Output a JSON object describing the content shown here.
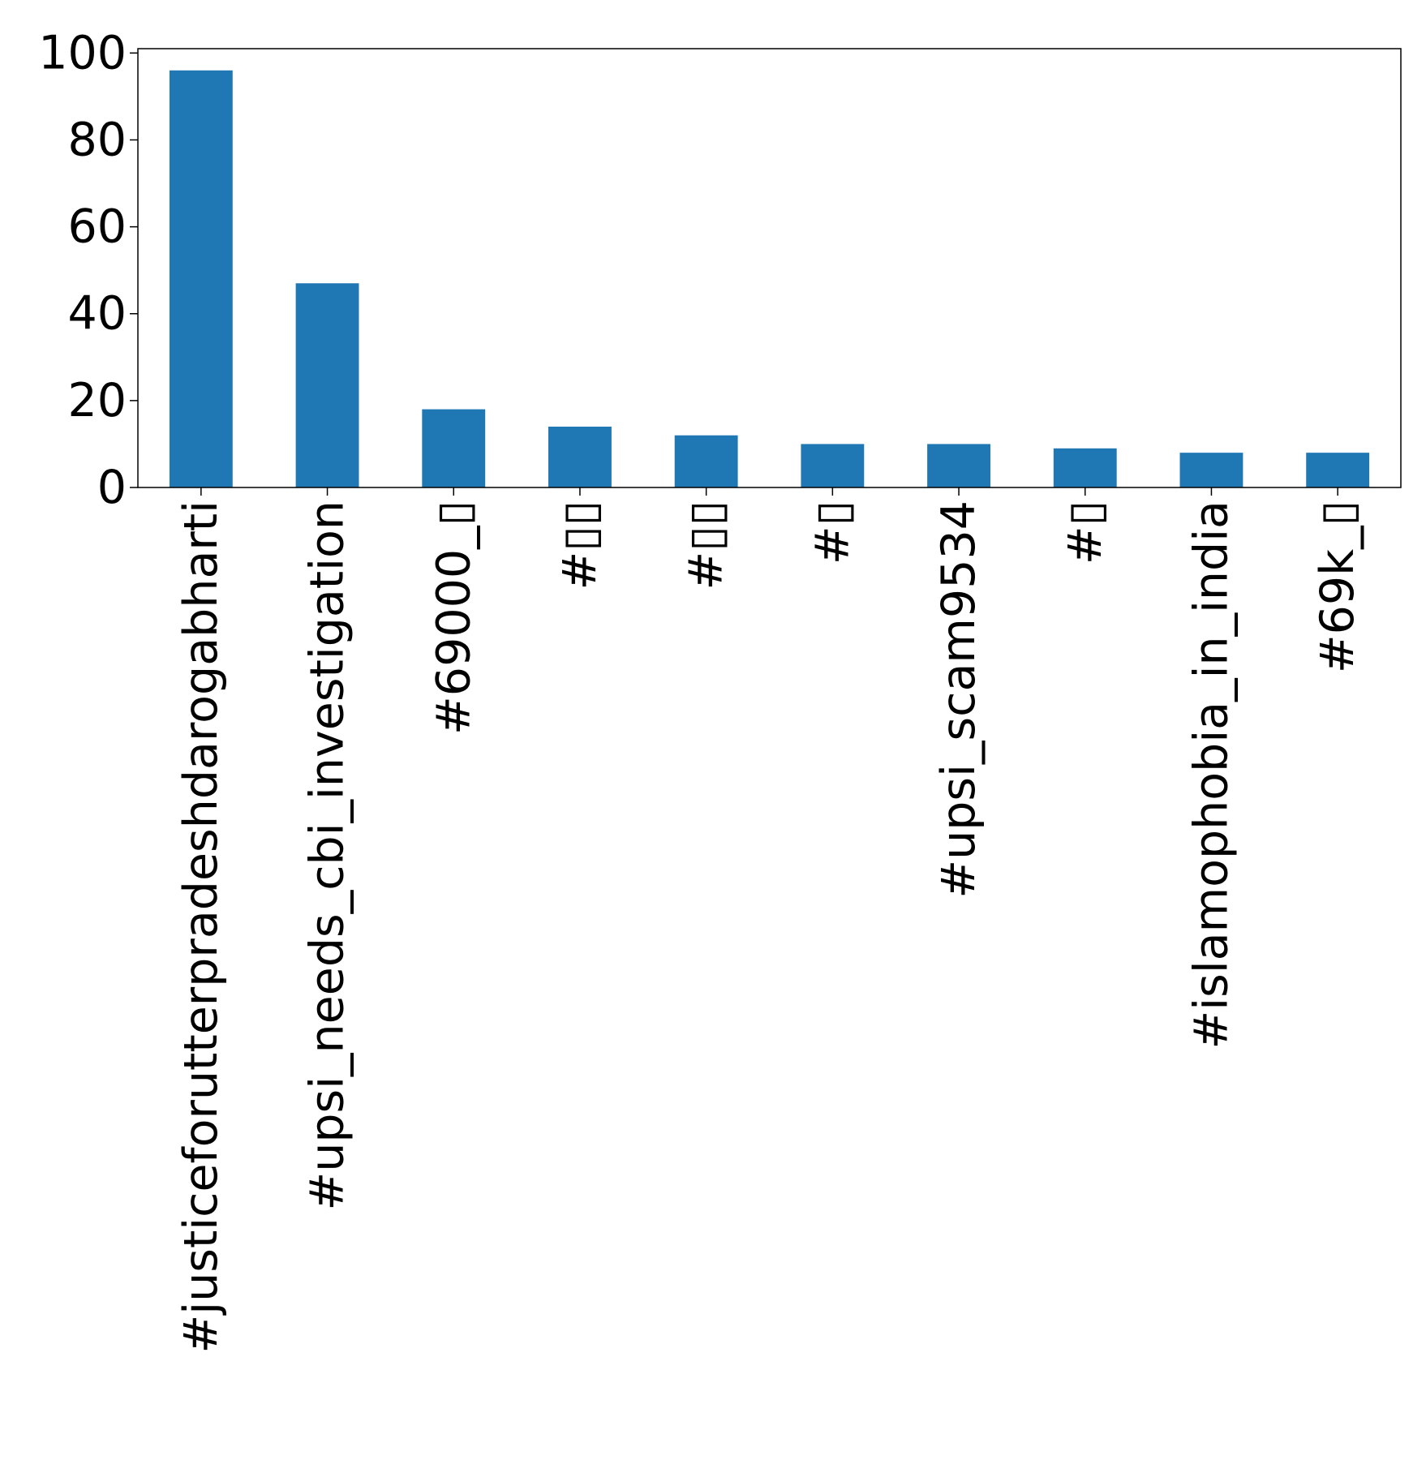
{
  "chart_data": {
    "type": "bar",
    "title": "",
    "xlabel": "",
    "ylabel": "",
    "categories": [
      "#justiceforutterpradeshdarogabharti",
      "#upsi_needs_cbi_investigation",
      "#69000_▯",
      "#▯▯",
      "#▯▯",
      "#▯",
      "#upsi_scam9534",
      "#▯",
      "#islamophobia_in_india",
      "#69k_▯"
    ],
    "values": [
      96,
      47,
      18,
      14,
      12,
      10,
      10,
      9,
      8,
      8
    ],
    "ylim": [
      0,
      101
    ],
    "yticks": [
      0,
      20,
      40,
      60,
      80,
      100
    ],
    "grid": false,
    "legend": "none",
    "bar_color": "#1f77b4"
  }
}
